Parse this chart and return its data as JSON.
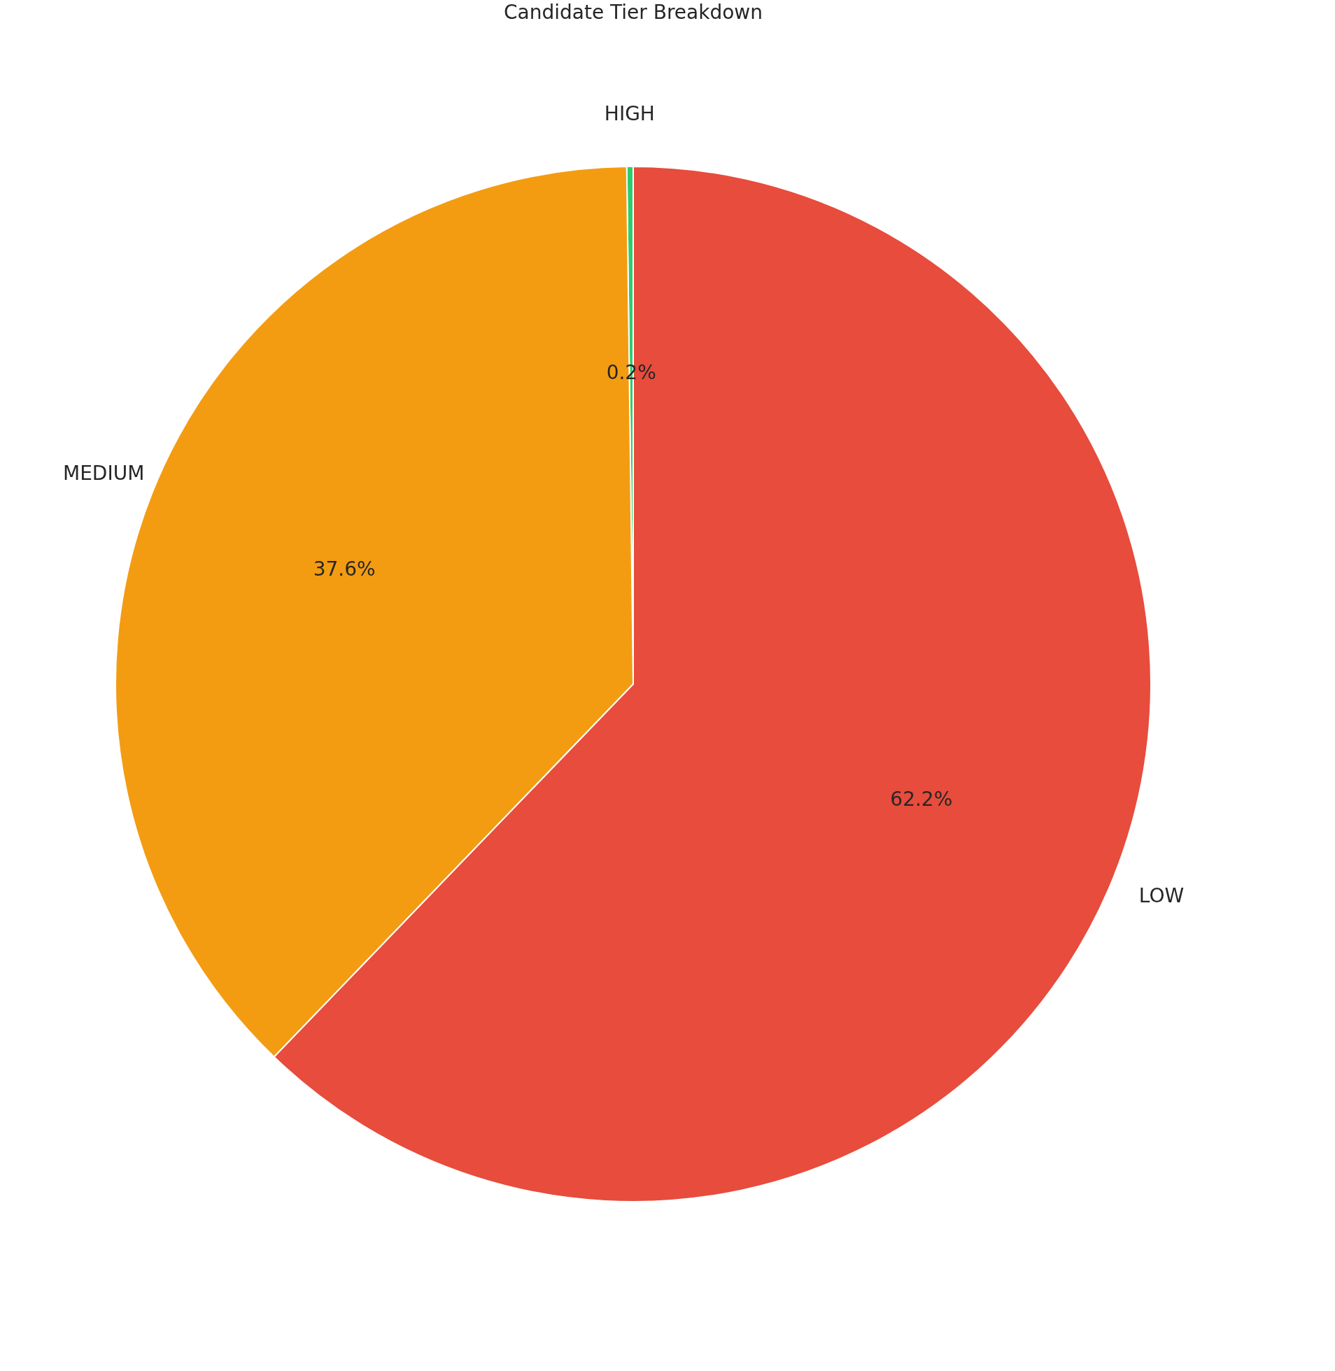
{
  "chart_data": {
    "type": "pie",
    "title": "Candidate Tier Breakdown",
    "categories": [
      "HIGH",
      "MEDIUM",
      "LOW"
    ],
    "values": [
      0.2,
      37.6,
      62.2
    ],
    "colors": [
      "#2ecc71",
      "#f39c12",
      "#e74c3c"
    ],
    "value_labels": [
      "0.2%",
      "37.6%",
      "62.2%"
    ],
    "legend": false
  }
}
